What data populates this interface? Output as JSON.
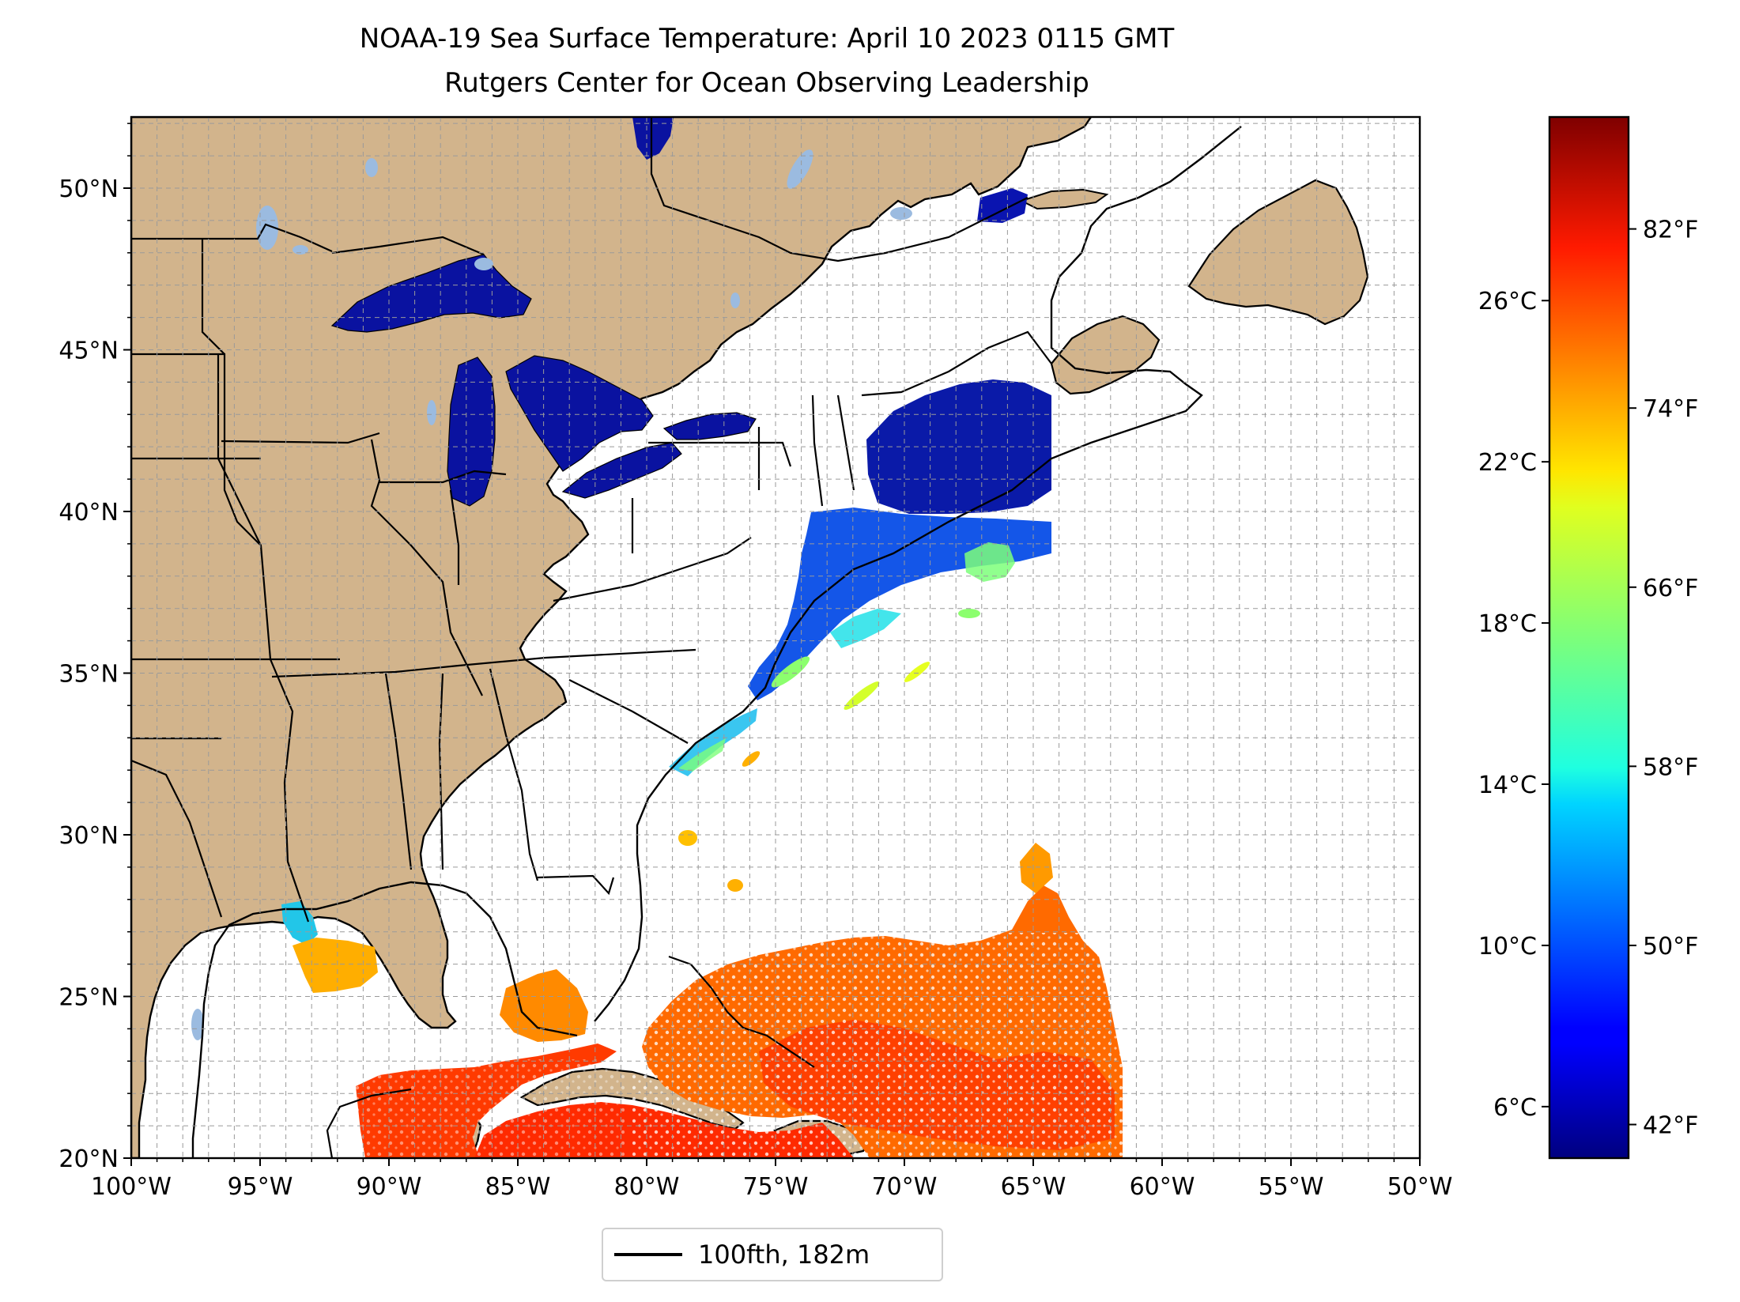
{
  "title": {
    "line1": "NOAA-19 Sea Surface Temperature: April 10 2023 0115 GMT",
    "line2": "Rutgers Center for Ocean Observing Leadership"
  },
  "map": {
    "lon_range": [
      -100,
      -50
    ],
    "lat_range": [
      20,
      52.2
    ],
    "x_tick_labels": [
      "100°W",
      "95°W",
      "90°W",
      "85°W",
      "80°W",
      "75°W",
      "70°W",
      "65°W",
      "60°W",
      "55°W",
      "50°W"
    ],
    "y_tick_labels": [
      "20°N",
      "25°N",
      "30°N",
      "35°N",
      "40°N",
      "45°N",
      "50°N"
    ],
    "grid": "dashed, every 1 degree",
    "colors": {
      "land": "#d2b48c",
      "lakes": "#9bbbe0",
      "no_data_ocean": "#ffffff"
    }
  },
  "colorbar": {
    "colormap": "jet",
    "celsius_ticks": [
      "6°C",
      "10°C",
      "14°C",
      "18°C",
      "22°C",
      "26°C"
    ],
    "fahrenheit_ticks": [
      "42°F",
      "50°F",
      "58°F",
      "66°F",
      "74°F",
      "82°F"
    ],
    "range_f": [
      40.5,
      87
    ]
  },
  "legend": {
    "label": "100fth, 182m",
    "placement": "bottom-center"
  }
}
